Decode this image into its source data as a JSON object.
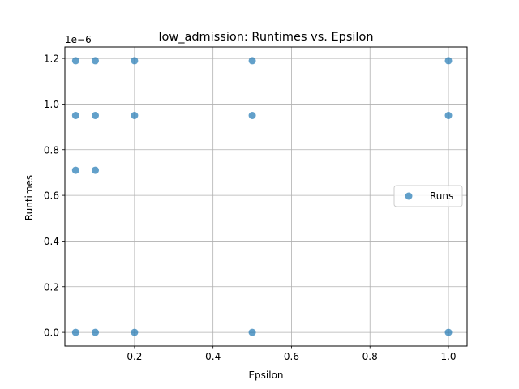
{
  "chart_data": {
    "type": "scatter",
    "title": "low_admission: Runtimes vs. Epsilon",
    "xlabel": "Epsilon",
    "ylabel": "Runtimes",
    "y_offset_label": "1e−6",
    "xlim": [
      0.0225,
      1.0475
    ],
    "ylim": [
      -0.06,
      1.25
    ],
    "xticks": [
      0.2,
      0.4,
      0.6,
      0.8,
      1.0
    ],
    "xtick_labels": [
      "0.2",
      "0.4",
      "0.6",
      "0.8",
      "1.0"
    ],
    "yticks": [
      0.0,
      0.2,
      0.4,
      0.6,
      0.8,
      1.0,
      1.2
    ],
    "ytick_labels": [
      "0.0",
      "0.2",
      "0.4",
      "0.6",
      "0.8",
      "1.0",
      "1.2"
    ],
    "grid": true,
    "legend_position": "center-right",
    "color": "#1f77b4",
    "series": [
      {
        "name": "Runs",
        "points": [
          {
            "x": 0.05,
            "y": 1.19
          },
          {
            "x": 0.05,
            "y": 0.95
          },
          {
            "x": 0.05,
            "y": 0.71
          },
          {
            "x": 0.05,
            "y": 0.0
          },
          {
            "x": 0.1,
            "y": 1.19
          },
          {
            "x": 0.1,
            "y": 0.95
          },
          {
            "x": 0.1,
            "y": 0.71
          },
          {
            "x": 0.1,
            "y": 0.0
          },
          {
            "x": 0.2,
            "y": 1.19
          },
          {
            "x": 0.2,
            "y": 0.95
          },
          {
            "x": 0.2,
            "y": 0.0
          },
          {
            "x": 0.5,
            "y": 1.19
          },
          {
            "x": 0.5,
            "y": 0.95
          },
          {
            "x": 0.5,
            "y": 0.0
          },
          {
            "x": 1.0,
            "y": 1.19
          },
          {
            "x": 1.0,
            "y": 0.95
          },
          {
            "x": 1.0,
            "y": 0.0
          }
        ]
      }
    ]
  }
}
